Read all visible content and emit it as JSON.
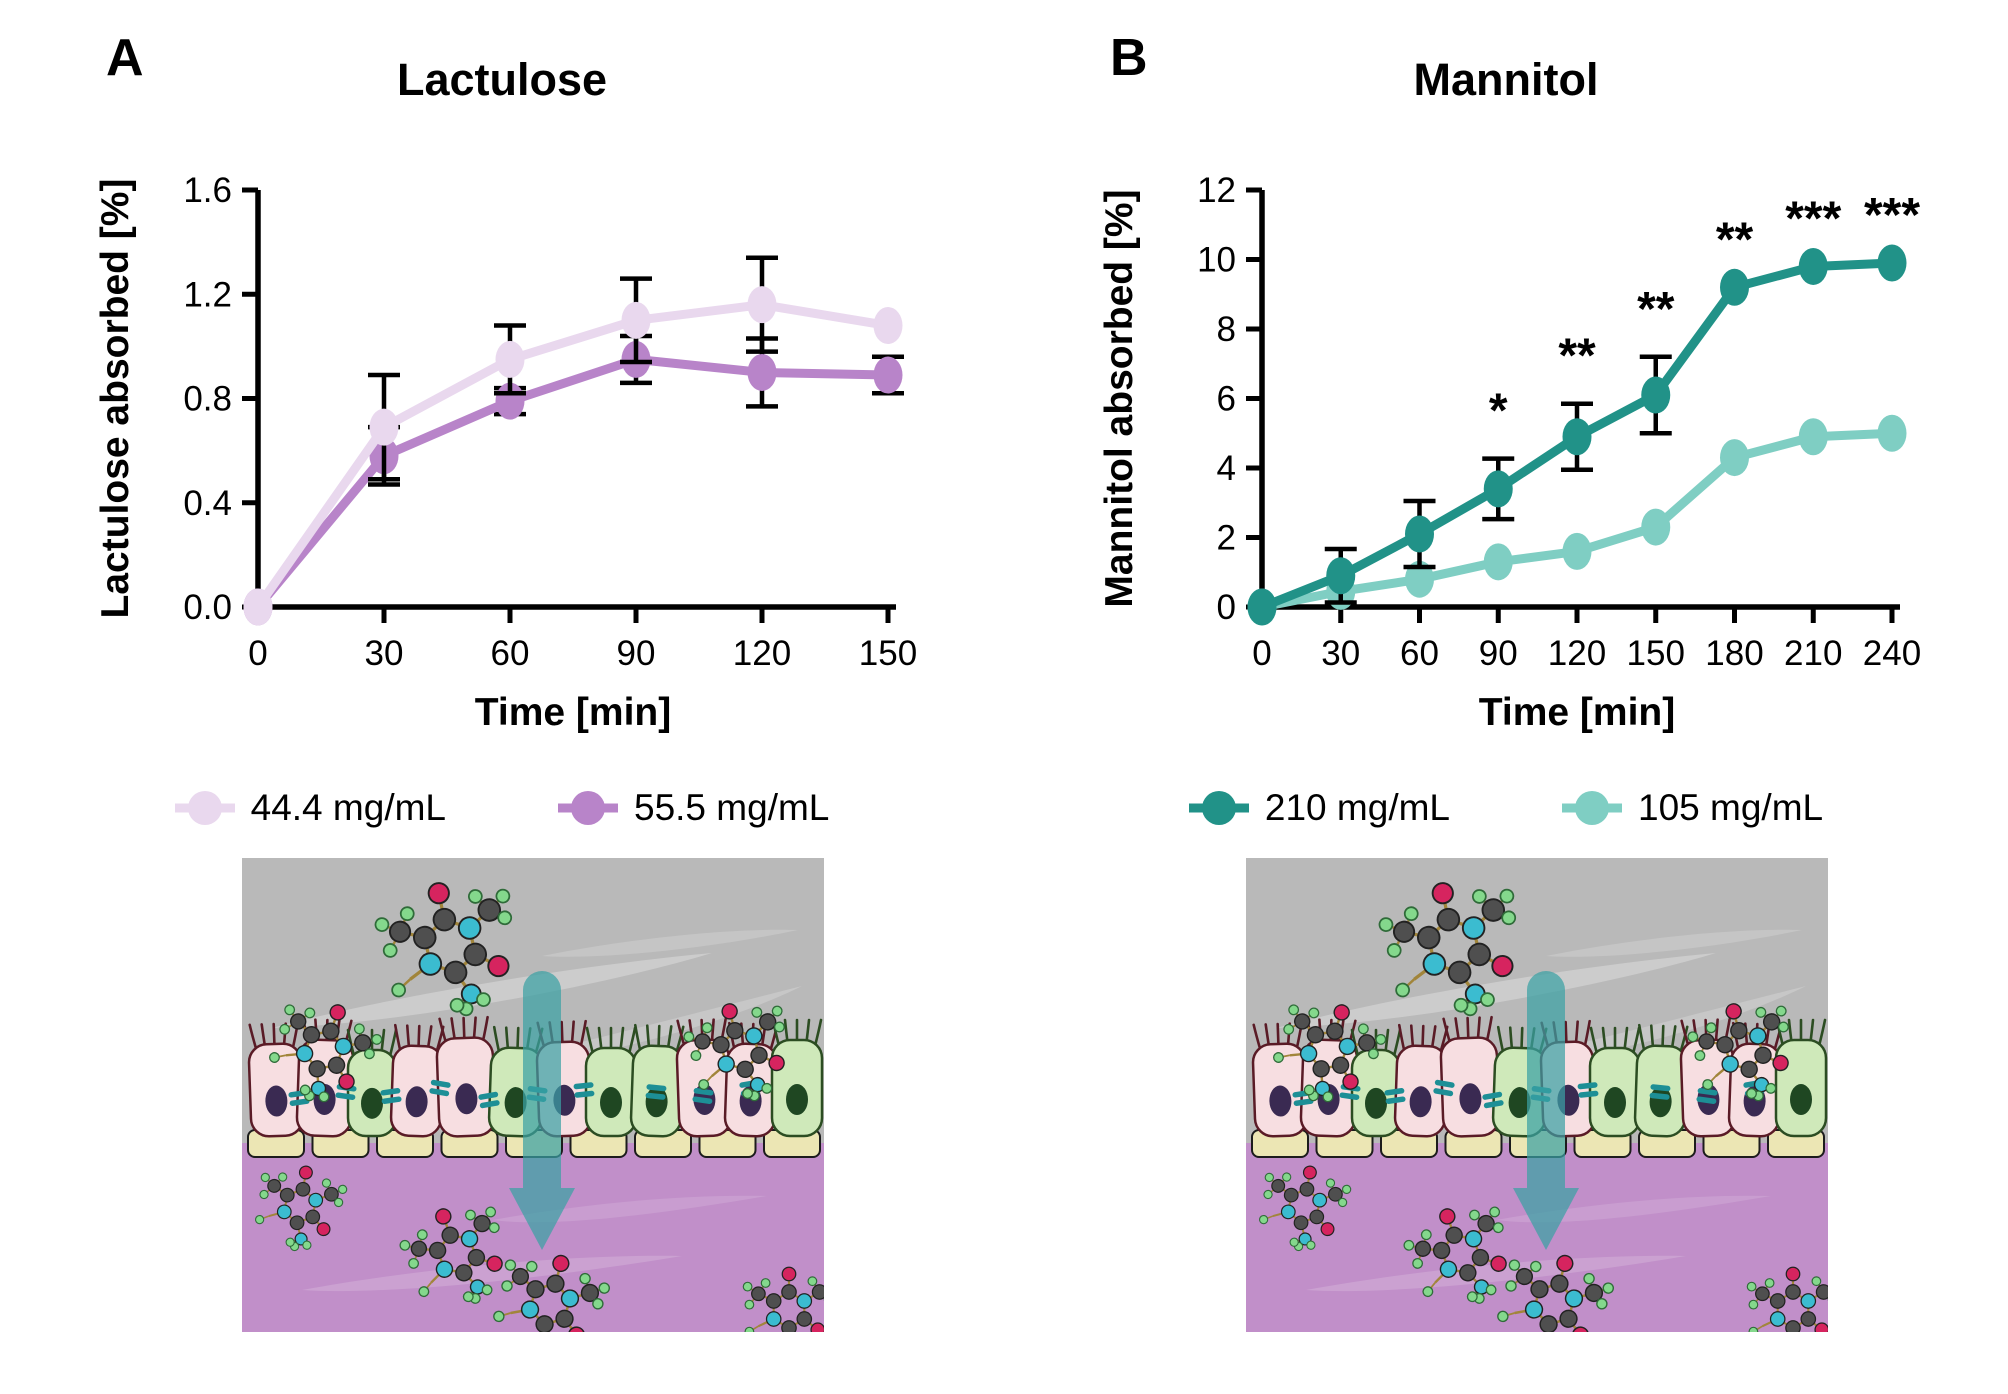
{
  "panels": [
    {
      "label": "A",
      "legend": [
        {
          "label": "44.4 mg/mL",
          "color": "#e9d8ee"
        },
        {
          "label": "55.5 mg/mL",
          "color": "#b884c9"
        }
      ]
    },
    {
      "label": "B",
      "legend": [
        {
          "label": "210 mg/mL",
          "color": "#219288"
        },
        {
          "label": "105 mg/mL",
          "color": "#7fcec3"
        }
      ]
    }
  ],
  "colors": {
    "axis": "#000000",
    "lumen_gray": "#b9b9b9",
    "tissue_purple": "#c18fc9",
    "arrow_teal": "#3aa1a4",
    "tight_junction_teal": "#1d8f96"
  },
  "chart_data": [
    {
      "type": "line",
      "title": "Lactulose",
      "xlabel": "Time [min]",
      "ylabel": "Lactulose absorbed [%]",
      "x": [
        0,
        30,
        60,
        90,
        120,
        150
      ],
      "xticks": [
        "0",
        "30",
        "60",
        "90",
        "120",
        "150"
      ],
      "ytick_values": [
        0,
        0.4,
        0.8,
        1.2,
        1.6
      ],
      "yticks": [
        "0.0",
        "0.4",
        "0.8",
        "1.2",
        "1.6"
      ],
      "xlim": [
        0,
        150
      ],
      "ylim": [
        0,
        1.6
      ],
      "grid": false,
      "legend_position": "bottom",
      "series": [
        {
          "name": "55.5 mg/mL",
          "color": "#b884c9",
          "values": [
            0,
            0.58,
            0.79,
            0.95,
            0.9,
            0.89
          ],
          "error": [
            0,
            0.11,
            0.05,
            0.09,
            0.13,
            0.07
          ],
          "significance": [
            "",
            "",
            "",
            "",
            "",
            ""
          ]
        },
        {
          "name": "44.4 mg/mL",
          "color": "#e9d8ee",
          "values": [
            0,
            0.69,
            0.95,
            1.1,
            1.16,
            1.08
          ],
          "error": [
            0,
            0.2,
            0.13,
            0.16,
            0.18,
            0
          ],
          "significance": [
            "",
            "",
            "",
            "",
            "",
            ""
          ]
        }
      ]
    },
    {
      "type": "line",
      "title": "Mannitol",
      "xlabel": "Time [min]",
      "ylabel": "Mannitol absorbed [%]",
      "x": [
        0,
        30,
        60,
        90,
        120,
        150,
        180,
        210,
        240
      ],
      "xticks": [
        "0",
        "30",
        "60",
        "90",
        "120",
        "150",
        "180",
        "210",
        "240"
      ],
      "ytick_values": [
        0,
        2,
        4,
        6,
        8,
        10,
        12
      ],
      "yticks": [
        "0",
        "2",
        "4",
        "6",
        "8",
        "10",
        "12"
      ],
      "xlim": [
        0,
        240
      ],
      "ylim": [
        0,
        12
      ],
      "grid": false,
      "legend_position": "bottom",
      "series": [
        {
          "name": "105 mg/mL",
          "color": "#7fcec3",
          "values": [
            0,
            0.45,
            0.8,
            1.3,
            1.6,
            2.3,
            4.3,
            4.9,
            5.0
          ],
          "error": [
            0,
            0,
            0,
            0,
            0,
            0,
            0,
            0,
            0
          ],
          "significance": [
            "",
            "",
            "",
            "",
            "",
            "",
            "",
            "",
            ""
          ]
        },
        {
          "name": "210 mg/mL",
          "color": "#219288",
          "values": [
            0,
            0.9,
            2.1,
            3.4,
            4.9,
            6.1,
            9.2,
            9.8,
            9.9
          ],
          "error": [
            0,
            0.77,
            0.95,
            0.87,
            0.95,
            1.1,
            0,
            0,
            0
          ],
          "significance": [
            "",
            "",
            "",
            "*",
            "**",
            "**",
            "**",
            "***",
            "***"
          ]
        }
      ]
    }
  ]
}
